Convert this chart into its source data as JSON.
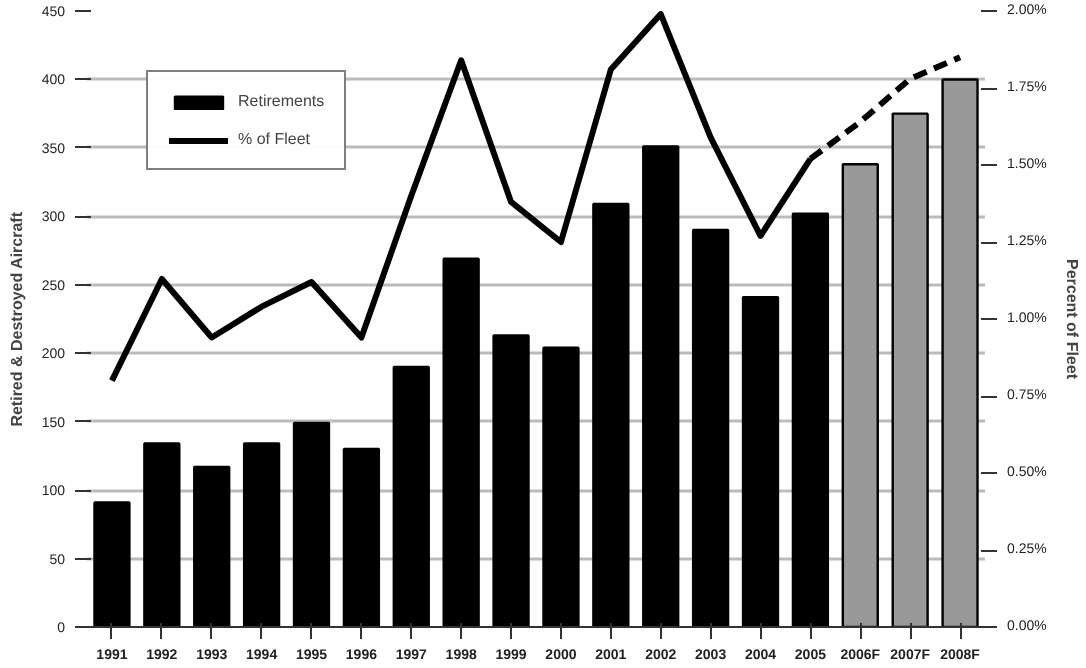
{
  "chart_data": {
    "type": "bar",
    "ylabel": "Retired & Destroyed Aircraft",
    "y2label": "Percent of Fleet",
    "categories": [
      "1991",
      "1992",
      "1993",
      "1994",
      "1995",
      "1996",
      "1997",
      "1998",
      "1999",
      "2000",
      "2001",
      "2002",
      "2003",
      "2004",
      "2005",
      "2006F",
      "2007F",
      "2008F"
    ],
    "series": [
      {
        "name": "Retirements",
        "color": "#000000",
        "colors": [
          "#000000",
          "#000000",
          "#000000",
          "#000000",
          "#000000",
          "#000000",
          "#000000",
          "#000000",
          "#000000",
          "#000000",
          "#000000",
          "#000000",
          "#000000",
          "#000000",
          "#000000",
          "#999999",
          "#999999",
          "#999999"
        ],
        "values": [
          91,
          134,
          117,
          134,
          149,
          130,
          190,
          269,
          213,
          204,
          309,
          351,
          290,
          241,
          302,
          338,
          375,
          400
        ]
      },
      {
        "name": "% of Fleet",
        "type": "line",
        "axis": "y2",
        "color": "#000000",
        "line_style": "solid",
        "values": [
          0.8,
          1.13,
          0.94,
          1.04,
          1.12,
          0.94,
          1.4,
          1.84,
          1.38,
          1.25,
          1.81,
          1.99,
          1.59,
          1.27,
          1.52,
          null,
          null,
          null
        ]
      },
      {
        "type": "line",
        "axis": "y2",
        "color": "#000000",
        "line_style": "dashed",
        "values": [
          null,
          null,
          null,
          null,
          null,
          null,
          null,
          null,
          null,
          null,
          null,
          null,
          null,
          null,
          1.52,
          1.64,
          1.78,
          1.85
        ]
      }
    ],
    "ylim": [
      0,
      450
    ],
    "yticks": [
      0,
      50,
      100,
      150,
      200,
      250,
      300,
      350,
      400,
      450
    ],
    "y2lim": [
      0,
      2
    ],
    "y2ticks": [
      {
        "value": 0,
        "label": "0.00%"
      },
      {
        "value": 0.25,
        "label": "0.25%"
      },
      {
        "value": 0.5,
        "label": "0.50%"
      },
      {
        "value": 0.75,
        "label": "0.75%"
      },
      {
        "value": 1,
        "label": "1.00%"
      },
      {
        "value": 1.25,
        "label": "1.25%"
      },
      {
        "value": 1.5,
        "label": "1.50%"
      },
      {
        "value": 1.75,
        "label": "1.75%"
      },
      {
        "value": 2,
        "label": "2.00%"
      }
    ],
    "grid": "y",
    "legend": "top left"
  }
}
